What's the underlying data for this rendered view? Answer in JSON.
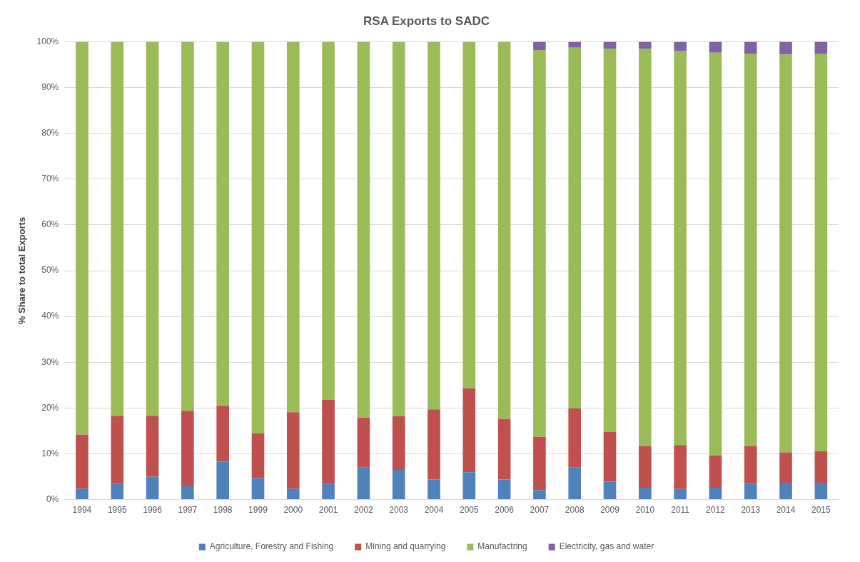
{
  "chart_data": {
    "type": "bar",
    "stacked": true,
    "title": "RSA Exports to SADC",
    "ylabel": "% Share to total Exports",
    "categories": [
      "1994",
      "1995",
      "1996",
      "1997",
      "1998",
      "1999",
      "2000",
      "2001",
      "2002",
      "2003",
      "2004",
      "2005",
      "2006",
      "2007",
      "2008",
      "2009",
      "2010",
      "2011",
      "2012",
      "2013",
      "2014",
      "2015"
    ],
    "series": [
      {
        "name": "Agriculture, Forestry and Fishing",
        "color": "#4f81bd",
        "values": [
          2.4,
          3.4,
          5.0,
          2.9,
          8.3,
          4.7,
          2.4,
          3.4,
          7.0,
          6.5,
          4.4,
          6.0,
          4.4,
          2.1,
          7.0,
          3.9,
          2.6,
          2.3,
          2.6,
          3.4,
          3.7,
          3.7
        ]
      },
      {
        "name": "Mining and quarrying",
        "color": "#c0504d",
        "values": [
          11.8,
          14.9,
          13.3,
          16.5,
          12.2,
          9.8,
          16.7,
          18.4,
          10.9,
          11.7,
          15.3,
          18.3,
          13.2,
          11.6,
          12.9,
          10.9,
          9.1,
          9.6,
          7.0,
          8.3,
          6.6,
          6.9
        ]
      },
      {
        "name": "Manufactring",
        "color": "#9bbb59",
        "values": [
          85.8,
          81.7,
          81.7,
          80.6,
          79.5,
          85.5,
          80.9,
          78.2,
          82.1,
          81.8,
          80.3,
          75.7,
          82.4,
          84.5,
          78.8,
          83.7,
          86.8,
          86.0,
          88.0,
          85.7,
          86.9,
          86.8
        ]
      },
      {
        "name": "Electricity, gas and water",
        "color": "#8064a2",
        "values": [
          0,
          0,
          0,
          0,
          0,
          0,
          0,
          0,
          0,
          0,
          0,
          0,
          0,
          1.8,
          1.3,
          1.5,
          1.5,
          2.1,
          2.4,
          2.6,
          2.8,
          2.6
        ]
      }
    ],
    "ylim": [
      0,
      100
    ],
    "yticks": [
      {
        "value": 0,
        "label": "0%"
      },
      {
        "value": 10,
        "label": "10%"
      },
      {
        "value": 20,
        "label": "20%"
      },
      {
        "value": 30,
        "label": "30%"
      },
      {
        "value": 40,
        "label": "40%"
      },
      {
        "value": 50,
        "label": "50%"
      },
      {
        "value": 60,
        "label": "60%"
      },
      {
        "value": 70,
        "label": "70%"
      },
      {
        "value": 80,
        "label": "80%"
      },
      {
        "value": 90,
        "label": "90%"
      },
      {
        "value": 100,
        "label": "100%"
      }
    ],
    "grid": "y",
    "legend": "bottom"
  }
}
